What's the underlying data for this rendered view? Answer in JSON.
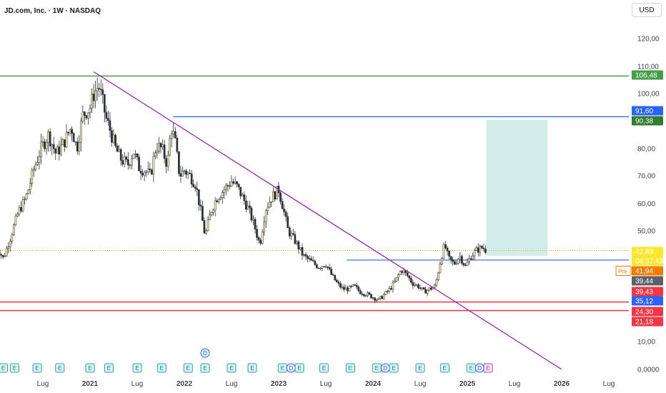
{
  "header": {
    "title": "JD.com, Inc. · 1W · NASDAQ",
    "currency": "USD"
  },
  "chart_data": {
    "type": "candlestick",
    "title": "JD.com, Inc. · 1W · NASDAQ",
    "ylim": [
      0,
      125
    ],
    "y_ticks": [
      "120,00",
      "110,00",
      "100,00",
      "80,00",
      "70,00",
      "60,00",
      "50,00",
      "10,00",
      "0,0000"
    ],
    "x_ticks": [
      "Lug",
      "2021",
      "Lug",
      "2022",
      "Lug",
      "2023",
      "Lug",
      "2024",
      "Lug",
      "2025",
      "Lug",
      "2026",
      "Lug"
    ],
    "price_path": [
      [
        2020.0,
        45
      ],
      [
        2020.08,
        40
      ],
      [
        2020.16,
        48
      ],
      [
        2020.24,
        57
      ],
      [
        2020.32,
        62
      ],
      [
        2020.4,
        72
      ],
      [
        2020.48,
        80
      ],
      [
        2020.56,
        85
      ],
      [
        2020.64,
        78
      ],
      [
        2020.72,
        82
      ],
      [
        2020.8,
        88
      ],
      [
        2020.86,
        80
      ],
      [
        2020.92,
        92
      ],
      [
        2021.0,
        95
      ],
      [
        2021.04,
        100
      ],
      [
        2021.09,
        103
      ],
      [
        2021.12,
        99
      ],
      [
        2021.17,
        91
      ],
      [
        2021.22,
        86
      ],
      [
        2021.27,
        80
      ],
      [
        2021.33,
        76
      ],
      [
        2021.4,
        74
      ],
      [
        2021.46,
        79
      ],
      [
        2021.52,
        73
      ],
      [
        2021.58,
        72
      ],
      [
        2021.64,
        70
      ],
      [
        2021.7,
        81
      ],
      [
        2021.76,
        80
      ],
      [
        2021.82,
        74
      ],
      [
        2021.86,
        88
      ],
      [
        2021.9,
        83
      ],
      [
        2021.95,
        70
      ],
      [
        2022.0,
        72
      ],
      [
        2022.06,
        70
      ],
      [
        2022.12,
        67
      ],
      [
        2022.18,
        56
      ],
      [
        2022.22,
        48
      ],
      [
        2022.28,
        57
      ],
      [
        2022.34,
        62
      ],
      [
        2022.42,
        65
      ],
      [
        2022.5,
        68
      ],
      [
        2022.56,
        66
      ],
      [
        2022.62,
        62
      ],
      [
        2022.68,
        58
      ],
      [
        2022.74,
        52
      ],
      [
        2022.8,
        45
      ],
      [
        2022.86,
        58
      ],
      [
        2022.92,
        62
      ],
      [
        2023.0,
        65
      ],
      [
        2023.05,
        58
      ],
      [
        2023.1,
        50
      ],
      [
        2023.18,
        46
      ],
      [
        2023.26,
        41
      ],
      [
        2023.34,
        39
      ],
      [
        2023.42,
        37
      ],
      [
        2023.5,
        38
      ],
      [
        2023.56,
        34
      ],
      [
        2023.62,
        31
      ],
      [
        2023.68,
        29
      ],
      [
        2023.74,
        29
      ],
      [
        2023.8,
        30
      ],
      [
        2023.86,
        28
      ],
      [
        2023.94,
        27
      ],
      [
        2024.0,
        26
      ],
      [
        2024.06,
        25
      ],
      [
        2024.12,
        27
      ],
      [
        2024.18,
        29
      ],
      [
        2024.24,
        32
      ],
      [
        2024.3,
        36
      ],
      [
        2024.36,
        34
      ],
      [
        2024.42,
        31
      ],
      [
        2024.48,
        30
      ],
      [
        2024.54,
        28
      ],
      [
        2024.6,
        29
      ],
      [
        2024.66,
        30
      ],
      [
        2024.72,
        40
      ],
      [
        2024.76,
        45
      ],
      [
        2024.8,
        40
      ],
      [
        2024.86,
        38
      ],
      [
        2024.92,
        41
      ],
      [
        2024.98,
        37
      ],
      [
        2025.04,
        41
      ],
      [
        2025.1,
        43
      ],
      [
        2025.16,
        44
      ],
      [
        2025.2,
        42.89
      ]
    ],
    "lines": {
      "resistance_top": 106.48,
      "blue_upper": 91.6,
      "green_upper": 90.38,
      "blue_lower": 39.44,
      "support_red_1": 24.3,
      "support_red_2": 21.18,
      "last_price": 42.89
    },
    "trendline": {
      "start": [
        2021.04,
        108
      ],
      "end": [
        2026.0,
        -1
      ]
    },
    "target_zone": {
      "x0": 2025.2,
      "x1": 2025.85,
      "y0": 41.0,
      "y1": 90.38
    },
    "price_labels": [
      {
        "text": "106,48",
        "value": 106.48,
        "color": "#43a047"
      },
      {
        "text": "91,60",
        "value": 91.6,
        "color": "#2962ff"
      },
      {
        "text": "90,38",
        "value": 90.38,
        "color": "#2e7d32"
      },
      {
        "text": "42,89",
        "value": 42.89,
        "color": "#fbe72b"
      },
      {
        "text": "08:37:43",
        "value": 42.89,
        "color": "#fbe72b"
      },
      {
        "text": "41,94",
        "value": 41.94,
        "color": "#f57c00",
        "prefix": "Pre"
      },
      {
        "text": "39,44",
        "value": 39.44,
        "color": "#5d606b"
      },
      {
        "text": "39,43",
        "value": 39.43,
        "color": "#f23645"
      },
      {
        "text": "35,12",
        "value": 35.12,
        "color": "#2962ff"
      },
      {
        "text": "24,30",
        "value": 24.3,
        "color": "#f23645"
      },
      {
        "text": "21,18",
        "value": 21.18,
        "color": "#f23645"
      }
    ],
    "events": [
      {
        "t": 2020.08,
        "kind": "E"
      },
      {
        "t": 2020.2,
        "kind": "E"
      },
      {
        "t": 2020.44,
        "kind": "E"
      },
      {
        "t": 2020.68,
        "kind": "E"
      },
      {
        "t": 2021.0,
        "kind": "E"
      },
      {
        "t": 2021.2,
        "kind": "E"
      },
      {
        "t": 2021.5,
        "kind": "E"
      },
      {
        "t": 2021.76,
        "kind": "E"
      },
      {
        "t": 2022.04,
        "kind": "E"
      },
      {
        "t": 2022.22,
        "kind": "E"
      },
      {
        "t": 2022.5,
        "kind": "E"
      },
      {
        "t": 2022.72,
        "kind": "E"
      },
      {
        "t": 2023.04,
        "kind": "E"
      },
      {
        "t": 2023.13,
        "kind": "D"
      },
      {
        "t": 2023.22,
        "kind": "E"
      },
      {
        "t": 2023.48,
        "kind": "E"
      },
      {
        "t": 2023.76,
        "kind": "E"
      },
      {
        "t": 2024.04,
        "kind": "E"
      },
      {
        "t": 2024.13,
        "kind": "D"
      },
      {
        "t": 2024.22,
        "kind": "E"
      },
      {
        "t": 2024.5,
        "kind": "E"
      },
      {
        "t": 2024.76,
        "kind": "E"
      },
      {
        "t": 2025.04,
        "kind": "E"
      },
      {
        "t": 2025.13,
        "kind": "D"
      },
      {
        "t": 2025.22,
        "kind": "E2"
      },
      {
        "t": 2022.22,
        "kind": "D",
        "raised": true
      }
    ]
  }
}
